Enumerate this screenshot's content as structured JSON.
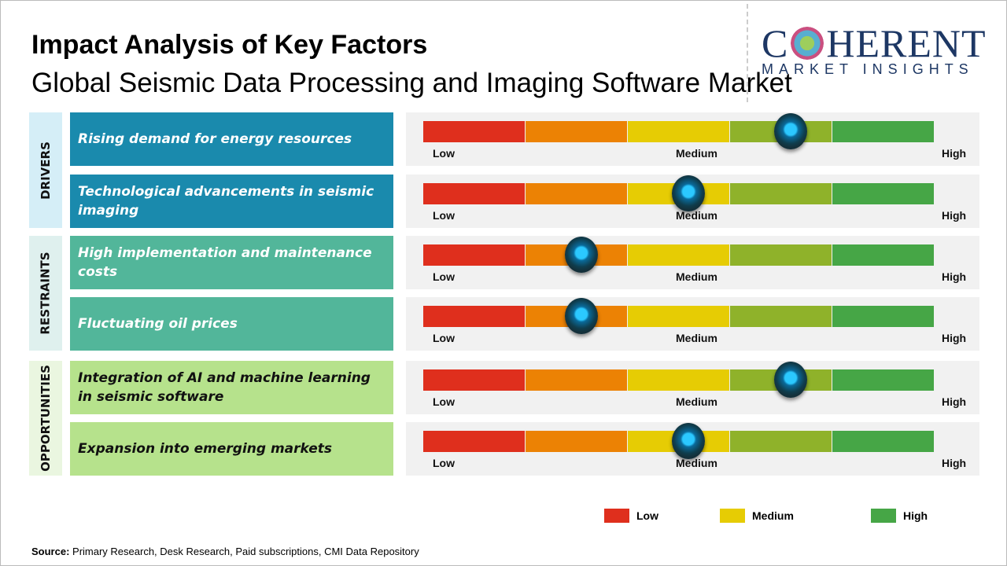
{
  "header": {
    "title": "Impact Analysis of Key Factors",
    "subtitle": "Global Seismic Data Processing and Imaging Software Market"
  },
  "logo": {
    "main": "COHERENT",
    "sub": "MARKET INSIGHTS"
  },
  "colors": {
    "low": "#df2f1d",
    "low_mid": "#ec8204",
    "medium": "#e6cc04",
    "mid_high": "#8fb22a",
    "high": "#46a646",
    "drivers": "#1a8aad",
    "restraints": "#52b69a",
    "opportunities": "#b6e28c"
  },
  "chart_data": {
    "type": "gauge",
    "scale_labels": [
      "Low",
      "Medium",
      "High"
    ],
    "categories": [
      {
        "name": "DRIVERS",
        "factors": [
          {
            "label": "Rising demand for energy resources",
            "impact": 0.72
          },
          {
            "label": "Technological advancements in seismic imaging",
            "impact": 0.52
          }
        ]
      },
      {
        "name": "RESTRAINTS",
        "factors": [
          {
            "label": "High implementation and maintenance costs",
            "impact": 0.31
          },
          {
            "label": "Fluctuating oil prices",
            "impact": 0.31
          }
        ]
      },
      {
        "name": "OPPORTUNITIES",
        "factors": [
          {
            "label": "Integration of AI and machine learning in seismic software",
            "impact": 0.72
          },
          {
            "label": "Expansion into emerging markets",
            "impact": 0.52
          }
        ]
      }
    ],
    "legend": [
      "Low",
      "Medium",
      "High"
    ]
  },
  "footer": {
    "source_label": "Source:",
    "source_text": " Primary Research, Desk Research, Paid subscriptions, CMI Data Repository"
  }
}
